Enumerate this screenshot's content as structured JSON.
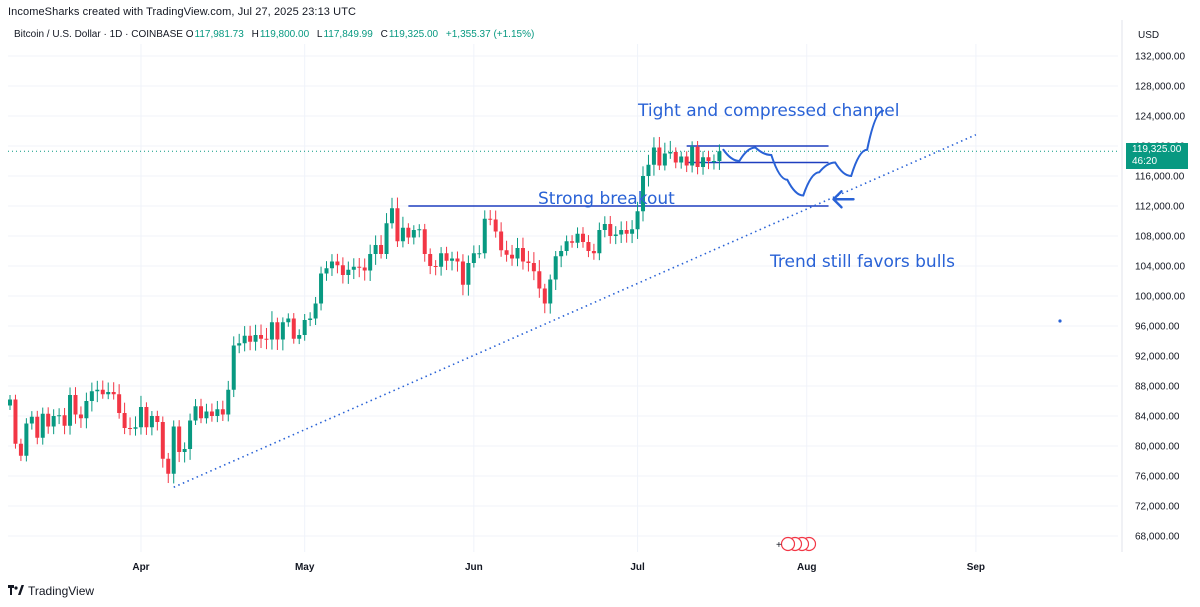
{
  "header": {
    "attribution": "IncomeSharks created with TradingView.com, Jul 27, 2025 23:13 UTC",
    "symbol": "Bitcoin / U.S. Dollar · 1D · COINBASE",
    "open_label": "O",
    "open": "117,981.73",
    "high_label": "H",
    "high": "119,800.00",
    "low_label": "L",
    "low": "117,849.99",
    "close_label": "C",
    "close": "119,325.00",
    "change": "+1,355.37 (+1.15%)"
  },
  "axis": {
    "currency": "USD",
    "price_badge": "119,325.00",
    "countdown": "46:20"
  },
  "brand": {
    "name": "TradingView"
  },
  "colors": {
    "up": "#089981",
    "down": "#f23645",
    "annotation": "#2962d6",
    "grid": "#f0f3fa",
    "badge": "#089981"
  },
  "chart_data": {
    "type": "candlestick",
    "title": "Bitcoin / U.S. Dollar · 1D · COINBASE",
    "x_start": "2025-03-08",
    "y_unit": "USD",
    "ylim": [
      66000,
      134000
    ],
    "y_ticks": [
      68000,
      72000,
      76000,
      80000,
      84000,
      88000,
      92000,
      96000,
      100000,
      104000,
      108000,
      112000,
      116000,
      120000,
      124000,
      128000,
      132000
    ],
    "x_ticks": [
      {
        "label": "Apr",
        "date": "2025-04-01"
      },
      {
        "label": "May",
        "date": "2025-05-01"
      },
      {
        "label": "Jun",
        "date": "2025-06-01"
      },
      {
        "label": "Jul",
        "date": "2025-07-01"
      },
      {
        "label": "Aug",
        "date": "2025-08-01"
      },
      {
        "label": "Sep",
        "date": "2025-09-01"
      }
    ],
    "grid": true,
    "closes": [
      86200,
      80300,
      78700,
      83000,
      83900,
      81100,
      84300,
      82600,
      84000,
      84100,
      82700,
      86800,
      84200,
      83700,
      86000,
      87300,
      87500,
      86900,
      87200,
      86900,
      84400,
      82400,
      82300,
      82500,
      85200,
      82500,
      84000,
      83200,
      78300,
      76300,
      82600,
      79200,
      79600,
      83400,
      85300,
      83700,
      84600,
      84000,
      84900,
      84200,
      87500,
      93400,
      93700,
      94700,
      93900,
      94800,
      94300,
      94200,
      96500,
      94200,
      96500,
      97000,
      94300,
      94800,
      96800,
      97000,
      99000,
      103000,
      103700,
      104600,
      104100,
      102800,
      103500,
      103900,
      103800,
      103400,
      105600,
      106800,
      105600,
      109700,
      111700,
      107300,
      109100,
      107800,
      108800,
      108900,
      105600,
      104000,
      103900,
      105700,
      104700,
      105000,
      104600,
      101500,
      104400,
      105700,
      105700,
      110300,
      110200,
      108600,
      106100,
      105500,
      105000,
      106400,
      104600,
      104400,
      103300,
      101000,
      99000,
      102200,
      105300,
      106000,
      107300,
      107100,
      108300,
      107200,
      106000,
      105700,
      108800,
      109600,
      108000,
      108200,
      108800,
      108300,
      108900,
      111300,
      116000,
      117500,
      119800,
      117400,
      119000,
      119200,
      117800,
      118600,
      117400,
      119900,
      117200,
      118500,
      118000,
      118000,
      119300
    ],
    "bull_flag_projection_prices": [
      119500,
      118000,
      119800,
      118800,
      115500,
      113400,
      116500,
      117800,
      116000,
      119500,
      124700
    ],
    "annotations": [
      {
        "text": "Tight and compressed channel"
      },
      {
        "text": "Strong breakout"
      },
      {
        "text": "Trend still favors bulls"
      }
    ],
    "levels": [
      {
        "name": "breakout resistance",
        "price": 112000,
        "from": "2025-05-20",
        "to": "2025-08-05"
      },
      {
        "name": "channel top",
        "price": 120000,
        "from": "2025-07-10",
        "to": "2025-08-05"
      },
      {
        "name": "channel bottom",
        "price": 117800,
        "from": "2025-07-10",
        "to": "2025-08-05"
      }
    ],
    "trendline": {
      "from_date": "2025-04-07",
      "from_price": 74500,
      "to_date": "2025-09-01",
      "to_price": 121500
    }
  }
}
